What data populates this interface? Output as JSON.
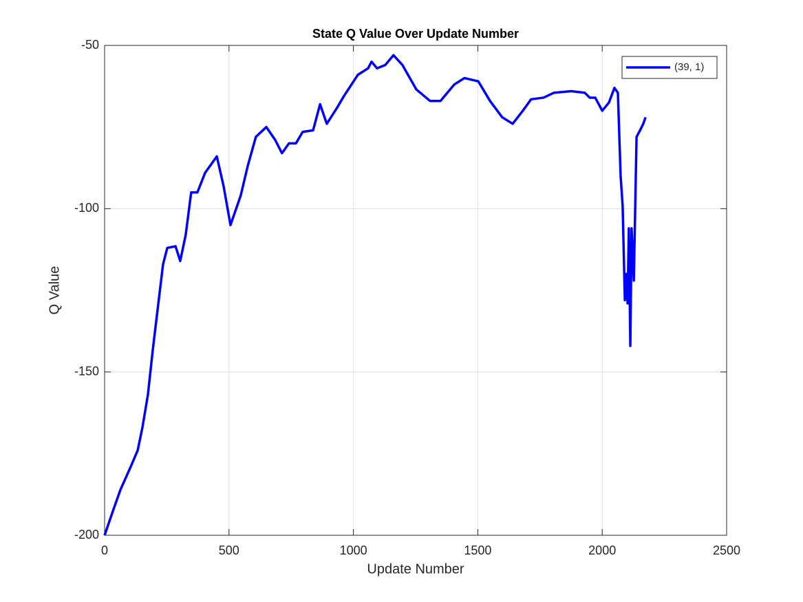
{
  "chart_data": {
    "type": "line",
    "title": "State Q Value Over Update Number",
    "xlabel": "Update Number",
    "ylabel": "Q Value",
    "xlim": [
      0,
      2500
    ],
    "xticks": [
      0,
      500,
      1000,
      1500,
      2000,
      2500
    ],
    "ylim": [
      -200,
      -50
    ],
    "yticks": [
      -200,
      -150,
      -100,
      -50
    ],
    "grid": true,
    "legend": "upper-right",
    "x": [
      0,
      36,
      64,
      105,
      133,
      152,
      174,
      194,
      216,
      235,
      252,
      285,
      304,
      326,
      348,
      373,
      404,
      451,
      478,
      506,
      547,
      575,
      608,
      650,
      686,
      713,
      741,
      769,
      796,
      838,
      866,
      893,
      935,
      962,
      1018,
      1059,
      1073,
      1095,
      1128,
      1161,
      1197,
      1253,
      1308,
      1350,
      1405,
      1446,
      1502,
      1549,
      1598,
      1640,
      1681,
      1714,
      1764,
      1806,
      1875,
      1930,
      1950,
      1972,
      2000,
      2027,
      2049,
      2063,
      2074,
      2082,
      2091,
      2096,
      2102,
      2107,
      2113,
      2118,
      2127,
      2138,
      2152,
      2165,
      2174
    ],
    "series": [
      {
        "name": "(39, 1)",
        "color": "#0000ff",
        "values": [
          -200,
          -192,
          -186,
          -179,
          -174,
          -167,
          -157,
          -143,
          -129,
          -117,
          -112,
          -111.5,
          -116,
          -108,
          -95,
          -95,
          -89,
          -84,
          -93,
          -105,
          -96,
          -87,
          -78,
          -75,
          -79,
          -83,
          -80,
          -80,
          -76.5,
          -76,
          -68,
          -74,
          -69,
          -65.5,
          -59,
          -57,
          -55,
          -57,
          -56,
          -53,
          -56,
          -63.5,
          -67,
          -67,
          -62,
          -60,
          -61,
          -67,
          -72,
          -74,
          -70,
          -66.5,
          -66,
          -64.5,
          -64,
          -64.5,
          -66,
          -66,
          -70,
          -67.5,
          -63,
          -64.5,
          -90,
          -99,
          -128,
          -120,
          -129,
          -106,
          -142,
          -106,
          -122,
          -78,
          -76,
          -74,
          -72
        ]
      }
    ]
  }
}
